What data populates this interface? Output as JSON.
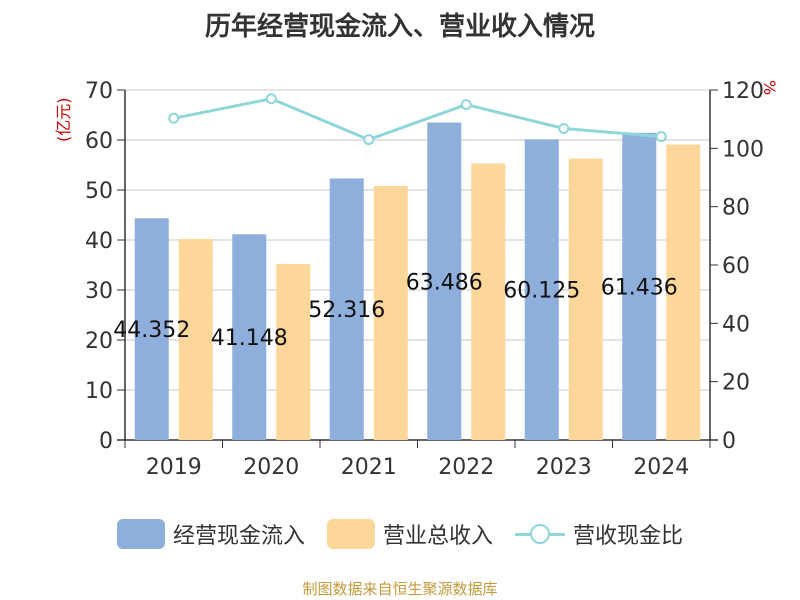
{
  "chart_data": {
    "type": "bar",
    "title": "历年经营现金流入、营业收入情况",
    "left_unit": "(亿元)",
    "right_unit": "%",
    "categories": [
      "2019",
      "2020",
      "2021",
      "2022",
      "2023",
      "2024"
    ],
    "y_left_lim": [
      0,
      70
    ],
    "y_left_ticks": [
      0,
      10,
      20,
      30,
      40,
      50,
      60,
      70
    ],
    "y_right_lim": [
      0,
      120
    ],
    "y_right_ticks": [
      0,
      20,
      40,
      60,
      80,
      100,
      120
    ],
    "series": [
      {
        "name": "经营现金流入",
        "type": "bar",
        "axis": "left",
        "color": "#8eaedc",
        "values": [
          44.352,
          41.148,
          52.316,
          63.486,
          60.125,
          61.436
        ],
        "labels": [
          "44.352",
          "41.148",
          "52.316",
          "63.486",
          "60.125",
          "61.436"
        ]
      },
      {
        "name": "营业总收入",
        "type": "bar",
        "axis": "left",
        "color": "#fdd79a",
        "values": [
          40.2,
          35.2,
          50.8,
          55.3,
          56.3,
          59.1
        ]
      },
      {
        "name": "营收现金比",
        "type": "line",
        "axis": "right",
        "color": "#8fd6da",
        "values": [
          110.3,
          117.0,
          103.0,
          115.0,
          106.8,
          104.0
        ]
      }
    ],
    "grid": true,
    "legend_position": "bottom"
  },
  "source": "制图数据来自恒生聚源数据库"
}
